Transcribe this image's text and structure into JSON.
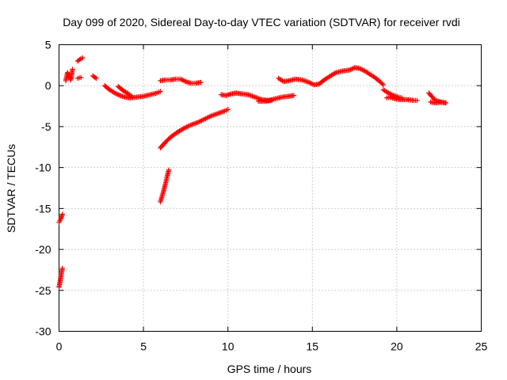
{
  "chart_data": {
    "type": "scatter",
    "title": "Day 099 of 2020, Sidereal Day-to-day VTEC variation (SDTVAR) for receiver rvdi",
    "xlabel": "GPS time / hours",
    "ylabel": "SDTVAR / TECUs",
    "xlim": [
      0,
      25
    ],
    "ylim": [
      -30,
      5
    ],
    "xticks": [
      0,
      5,
      10,
      15,
      20,
      25
    ],
    "yticks": [
      -30,
      -25,
      -20,
      -15,
      -10,
      -5,
      0,
      5
    ],
    "grid": true,
    "marker": "+",
    "color": "#ff0000",
    "series": [
      {
        "name": "SDTVAR",
        "segments": [
          {
            "x": [
              0.0,
              0.1,
              0.2
            ],
            "y": [
              -24.6,
              -23.5,
              -22.3
            ]
          },
          {
            "x": [
              0.0,
              0.1,
              0.2
            ],
            "y": [
              -16.7,
              -16.3,
              -15.7
            ]
          },
          {
            "x": [
              0.4,
              0.5,
              0.7,
              0.8
            ],
            "y": [
              0.6,
              1.6,
              0.7,
              2.0
            ]
          },
          {
            "x": [
              1.1,
              1.3
            ],
            "y": [
              0.9,
              1.0
            ]
          },
          {
            "x": [
              1.1,
              1.3,
              1.4
            ],
            "y": [
              3.0,
              3.3,
              3.4
            ]
          },
          {
            "x": [
              2.0,
              2.2
            ],
            "y": [
              1.2,
              0.9
            ]
          },
          {
            "x": [
              2.7,
              3.0,
              3.3,
              3.6,
              3.9,
              4.2,
              4.6,
              5.0,
              5.4,
              5.8,
              6.0
            ],
            "y": [
              0.0,
              -0.5,
              -0.9,
              -1.2,
              -1.4,
              -1.5,
              -1.4,
              -1.3,
              -1.1,
              -0.9,
              -0.7
            ]
          },
          {
            "x": [
              3.5,
              3.8,
              4.1,
              4.3
            ],
            "y": [
              -0.1,
              -0.6,
              -1.0,
              -1.3
            ]
          },
          {
            "x": [
              6.0,
              6.3,
              6.6,
              6.9,
              7.2,
              7.5,
              7.8,
              8.1,
              8.4
            ],
            "y": [
              0.6,
              0.7,
              0.7,
              0.8,
              0.8,
              0.5,
              0.3,
              0.3,
              0.4
            ]
          },
          {
            "x": [
              6.0,
              6.1,
              6.2,
              6.3,
              6.4,
              6.5
            ],
            "y": [
              -14.2,
              -13.5,
              -12.8,
              -12.0,
              -11.1,
              -10.3
            ]
          },
          {
            "x": [
              6.0,
              6.3,
              6.6,
              7.0,
              7.4,
              7.8,
              8.2,
              8.6,
              9.0,
              9.4,
              9.8,
              10.0
            ],
            "y": [
              -7.6,
              -6.9,
              -6.3,
              -5.7,
              -5.2,
              -4.8,
              -4.5,
              -4.1,
              -3.7,
              -3.4,
              -3.1,
              -2.9
            ]
          },
          {
            "x": [
              9.6,
              9.9,
              10.2,
              10.5,
              10.8,
              11.2,
              11.6,
              12.0,
              12.4,
              12.8,
              13.2,
              13.6,
              13.9
            ],
            "y": [
              -1.1,
              -1.2,
              -1.0,
              -0.9,
              -1.0,
              -1.1,
              -1.4,
              -1.7,
              -1.8,
              -1.6,
              -1.4,
              -1.3,
              -1.2
            ]
          },
          {
            "x": [
              11.8,
              12.2,
              12.6
            ],
            "y": [
              -1.9,
              -1.9,
              -1.8
            ]
          },
          {
            "x": [
              13.0,
              13.3,
              13.6,
              14.0,
              14.4,
              14.8,
              15.1,
              15.4,
              15.7,
              16.0,
              16.4,
              16.8,
              17.2,
              17.5,
              17.8,
              18.1,
              18.4,
              18.7,
              19.0,
              19.2
            ],
            "y": [
              0.9,
              0.5,
              0.6,
              0.8,
              0.7,
              0.4,
              0.1,
              0.2,
              0.7,
              1.1,
              1.6,
              1.8,
              1.9,
              2.2,
              2.1,
              1.8,
              1.4,
              1.0,
              0.5,
              0.1
            ]
          },
          {
            "x": [
              19.4,
              19.6,
              19.9,
              20.2,
              20.6,
              21.0,
              21.2
            ],
            "y": [
              -1.5,
              -1.4,
              -1.6,
              -1.7,
              -1.7,
              -1.8,
              -1.8
            ]
          },
          {
            "x": [
              19.2,
              19.5,
              19.8,
              20.1,
              20.3
            ],
            "y": [
              -0.5,
              -0.9,
              -1.2,
              -1.4,
              -1.5
            ]
          },
          {
            "x": [
              21.9,
              22.1,
              22.3,
              22.6,
              22.9
            ],
            "y": [
              -0.9,
              -1.4,
              -1.8,
              -2.0,
              -2.1
            ]
          },
          {
            "x": [
              22.0,
              22.3,
              22.6,
              22.9
            ],
            "y": [
              -2.0,
              -2.1,
              -2.0,
              -2.1
            ]
          }
        ]
      }
    ]
  }
}
